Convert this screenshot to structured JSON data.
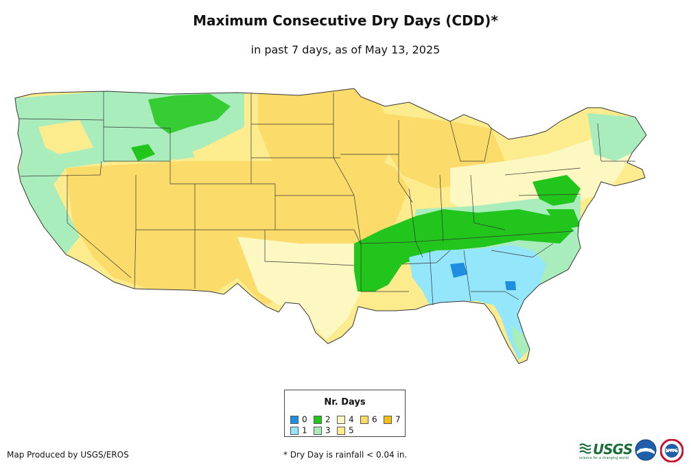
{
  "title": "Maximum Consecutive Dry Days (CDD)*",
  "subtitle": "in past 7 days, as of May 13, 2025",
  "legend": {
    "title": "Nr. Days",
    "items": [
      {
        "label": "0",
        "color": "#1f8ee0"
      },
      {
        "label": "1",
        "color": "#94e6fb"
      },
      {
        "label": "2",
        "color": "#22c51c"
      },
      {
        "label": "3",
        "color": "#a9edbd"
      },
      {
        "label": "4",
        "color": "#fdf8c2"
      },
      {
        "label": "5",
        "color": "#fdec8e"
      },
      {
        "label": "6",
        "color": "#fbdb6a"
      },
      {
        "label": "7",
        "color": "#f7be1c"
      }
    ]
  },
  "credit": "Map Produced by USGS/EROS",
  "footnote": "* Dry Day is rainfall < 0.04 in.",
  "logos": {
    "usgs": "USGS",
    "usgs_tagline": "science for a changing world",
    "noaa": "noaa",
    "nws": "NWS"
  },
  "colors": {
    "boundary": "#333333"
  }
}
